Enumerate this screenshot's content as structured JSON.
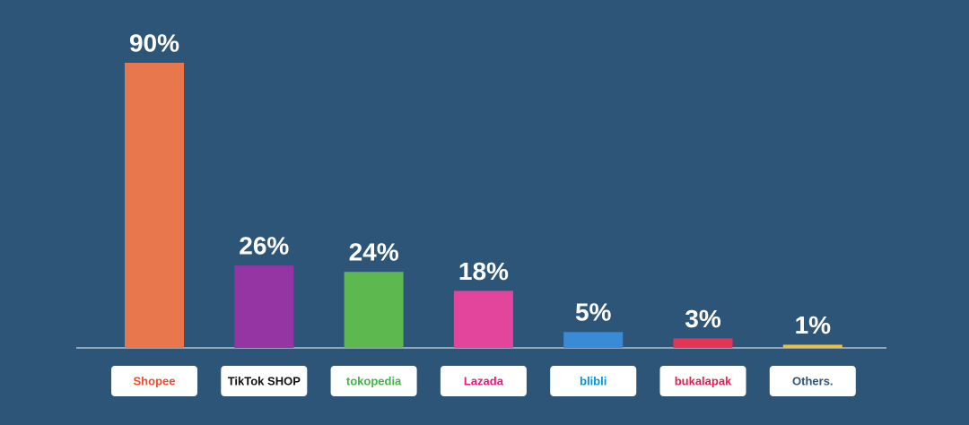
{
  "chart_data": {
    "type": "bar",
    "categories": [
      "Shopee",
      "TikTok SHOP",
      "tokopedia",
      "Lazada",
      "blibli",
      "bukalapak",
      "Others."
    ],
    "values": [
      90,
      26,
      24,
      18,
      5,
      3,
      1
    ],
    "value_labels": [
      "90%",
      "26%",
      "24%",
      "18%",
      "5%",
      "3%",
      "1%"
    ],
    "colors": [
      "#e8774d",
      "#9534a3",
      "#5cb84f",
      "#e3459d",
      "#3a8bd6",
      "#e63457",
      "#f2c12e"
    ],
    "label_colors": [
      "#ee4d2d",
      "#111111",
      "#42b549",
      "#f0157a",
      "#0095da",
      "#e31e52",
      "#2d5577"
    ]
  }
}
